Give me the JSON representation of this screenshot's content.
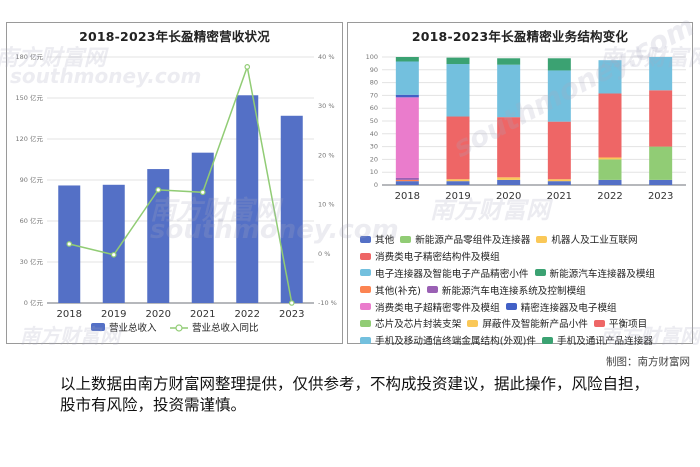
{
  "left_panel": {
    "title": "2018-2023年长盈精密营收状况",
    "left_axis_labels": [
      "0 亿元",
      "30 亿元",
      "60 亿元",
      "90 亿元",
      "120 亿元",
      "150 亿元",
      "180 亿元"
    ],
    "right_axis_labels": [
      "-10 %",
      "0 %",
      "10 %",
      "20 %",
      "30 %",
      "40 %"
    ],
    "legend_bar": "营业总收入",
    "legend_line": "营业总收入同比"
  },
  "right_panel": {
    "title": "2018-2023年长盈精密业务结构变化",
    "y_tick_labels": [
      "0",
      "10",
      "20",
      "30",
      "40",
      "50",
      "60",
      "70",
      "80",
      "90",
      "100"
    ]
  },
  "watermarks": {
    "cn": "南方财富网",
    "en": "southmoney.com"
  },
  "credit": "制图：南方财富网",
  "disclaimer": "以上数据由南方财富网整理提供，仅供参考，不构成投资建议，据此操作，风险自担，股市有风险，投资需谨慎。",
  "colors": {
    "bar": "#5470c6",
    "line": "#91cc75"
  },
  "chart_data": [
    {
      "type": "bar",
      "categories": [
        "2018",
        "2019",
        "2020",
        "2021",
        "2022",
        "2023"
      ],
      "series": [
        {
          "name": "营业总收入",
          "axis": "left",
          "values": [
            86,
            86.5,
            98,
            110,
            152,
            137
          ]
        },
        {
          "name": "营业总收入同比",
          "type": "line",
          "axis": "right",
          "values": [
            2,
            -0.2,
            13,
            12.5,
            38,
            -10
          ]
        }
      ],
      "left_ylim": [
        0,
        180
      ],
      "right_ylim": [
        -10,
        40
      ],
      "grid": true,
      "legend_position": "bottom"
    },
    {
      "type": "bar",
      "stacked": true,
      "categories": [
        "2018",
        "2019",
        "2020",
        "2021",
        "2022",
        "2023"
      ],
      "ylim": [
        0,
        100
      ],
      "grid": true,
      "legend_position": "bottom",
      "series": [
        {
          "name": "其他",
          "color": "#5470c6",
          "values": [
            3,
            3,
            4,
            3,
            4,
            4
          ]
        },
        {
          "name": "新能源产品零组件及连接器",
          "color": "#91cc75",
          "values": [
            0,
            0,
            0,
            0,
            16,
            26
          ]
        },
        {
          "name": "机器人及工业互联网",
          "color": "#fac858",
          "values": [
            0,
            1.5,
            2,
            1.5,
            1.5,
            0
          ]
        },
        {
          "name": "消费类电子精密结构件及模组",
          "color": "#ee6666",
          "values": [
            0,
            49,
            47,
            45,
            50,
            44
          ]
        },
        {
          "name": "电子连接器及智能电子产品精密小件",
          "color": "#73c0de",
          "values": [
            0,
            41,
            41,
            40,
            26,
            26
          ]
        },
        {
          "name": "新能源汽车连接器及模组",
          "color": "#3ba272",
          "values": [
            0,
            5,
            5,
            9.5,
            0,
            0
          ]
        },
        {
          "name": "其他(补充)",
          "color": "#fc8452",
          "values": [
            1,
            0,
            0,
            0,
            0,
            0
          ]
        },
        {
          "name": "新能源汽车电连接系统及控制模组",
          "color": "#9a60b4",
          "values": [
            1.5,
            0,
            0,
            0,
            0,
            0
          ]
        },
        {
          "name": "消费类电子超精密零件及模组",
          "color": "#ea7ccc",
          "values": [
            63,
            0,
            0,
            0,
            0,
            0
          ]
        },
        {
          "name": "精密连接器及电子模组",
          "color": "#4260c6",
          "values": [
            2,
            0,
            0,
            0,
            0,
            0
          ]
        },
        {
          "name": "芯片及芯片封装支架",
          "color": "#91cc75",
          "values": [
            0,
            0,
            0,
            0,
            0,
            0
          ]
        },
        {
          "name": "屏蔽件及智能新产品小件",
          "color": "#fac858",
          "values": [
            0,
            0,
            0,
            0,
            0,
            0
          ]
        },
        {
          "name": "平衡项目",
          "color": "#ee6666",
          "values": [
            0,
            0,
            0,
            0,
            0,
            0
          ]
        },
        {
          "name": "手机及移动通信终端金属结构(外观)件",
          "color": "#73c0de",
          "values": [
            26,
            0,
            0,
            0,
            0,
            0
          ]
        },
        {
          "name": "手机及通讯产品连接器",
          "color": "#3ba272",
          "values": [
            3.5,
            0,
            0,
            0,
            0,
            0
          ]
        }
      ]
    }
  ]
}
